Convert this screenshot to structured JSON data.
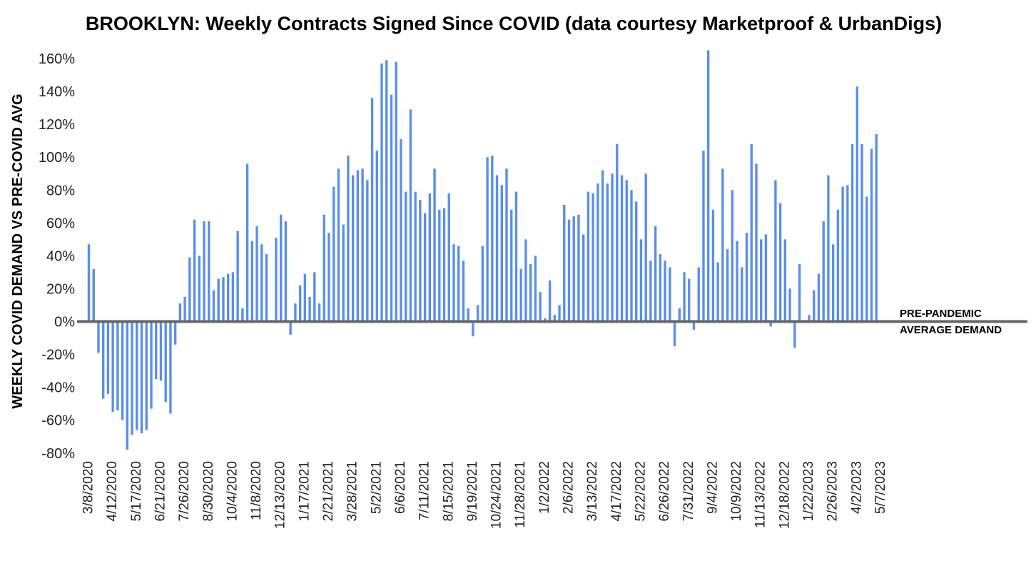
{
  "chart_data": {
    "type": "bar",
    "title": "BROOKLYN: Weekly Contracts Signed Since COVID (data courtesy Marketproof & UrbanDigs)",
    "xlabel": "",
    "ylabel": "WEEKLY COVID DEMAND VS PRE-COVID AVG",
    "ylim": [
      -80,
      165
    ],
    "y_ticks": [
      "160%",
      "140%",
      "120%",
      "100%",
      "80%",
      "60%",
      "40%",
      "20%",
      "0%",
      "-20%",
      "-40%",
      "-60%",
      "-80%"
    ],
    "x_tick_labels": [
      "3/8/2020",
      "4/12/2020",
      "5/17/2020",
      "6/21/2020",
      "7/26/2020",
      "8/30/2020",
      "10/4/2020",
      "11/8/2020",
      "12/13/2020",
      "1/17/2021",
      "2/21/2021",
      "3/28/2021",
      "5/2/2021",
      "6/6/2021",
      "7/11/2021",
      "8/15/2021",
      "9/19/2021",
      "10/24/2021",
      "11/28/2021",
      "1/2/2022",
      "2/6/2022",
      "3/13/2022",
      "4/17/2022",
      "5/22/2022",
      "6/26/2022",
      "7/31/2022",
      "9/4/2022",
      "10/9/2022",
      "11/13/2022",
      "12/18/2022",
      "1/22/2023",
      "2/26/2023",
      "4/2/2023",
      "5/7/2023"
    ],
    "baseline_label": [
      "PRE-PANDEMIC",
      "AVERAGE DEMAND"
    ],
    "grid": false,
    "bar_color": "#5b8fe8",
    "values": [
      47,
      32,
      -19,
      -47,
      -44,
      -55,
      -54,
      -60,
      -78,
      -69,
      -66,
      -68,
      -66,
      -53,
      -35,
      -36,
      -49,
      -56,
      -14,
      11,
      15,
      39,
      62,
      40,
      61,
      61,
      19,
      26,
      27,
      29,
      30,
      55,
      8,
      96,
      49,
      58,
      47,
      41,
      1,
      51,
      65,
      61,
      -8,
      11,
      22,
      29,
      15,
      30,
      11,
      65,
      54,
      82,
      93,
      59,
      101,
      89,
      92,
      93,
      86,
      136,
      104,
      157,
      159,
      138,
      158,
      111,
      79,
      129,
      79,
      74,
      66,
      78,
      93,
      68,
      69,
      78,
      47,
      46,
      37,
      8,
      -9,
      10,
      46,
      100,
      101,
      89,
      83,
      93,
      68,
      79,
      32,
      50,
      35,
      40,
      18,
      2,
      25,
      4,
      10,
      71,
      62,
      64,
      65,
      53,
      79,
      78,
      84,
      92,
      84,
      90,
      108,
      89,
      86,
      80,
      73,
      50,
      90,
      37,
      58,
      41,
      37,
      33,
      -15,
      8,
      30,
      26,
      -5,
      33,
      104,
      165,
      68,
      36,
      93,
      44,
      80,
      49,
      33,
      54,
      108,
      96,
      50,
      53,
      -3,
      86,
      72,
      50,
      20,
      -16,
      35,
      1,
      4,
      19,
      29,
      61,
      89,
      47,
      68,
      82,
      83,
      108,
      143,
      108,
      76,
      105,
      114
    ]
  }
}
